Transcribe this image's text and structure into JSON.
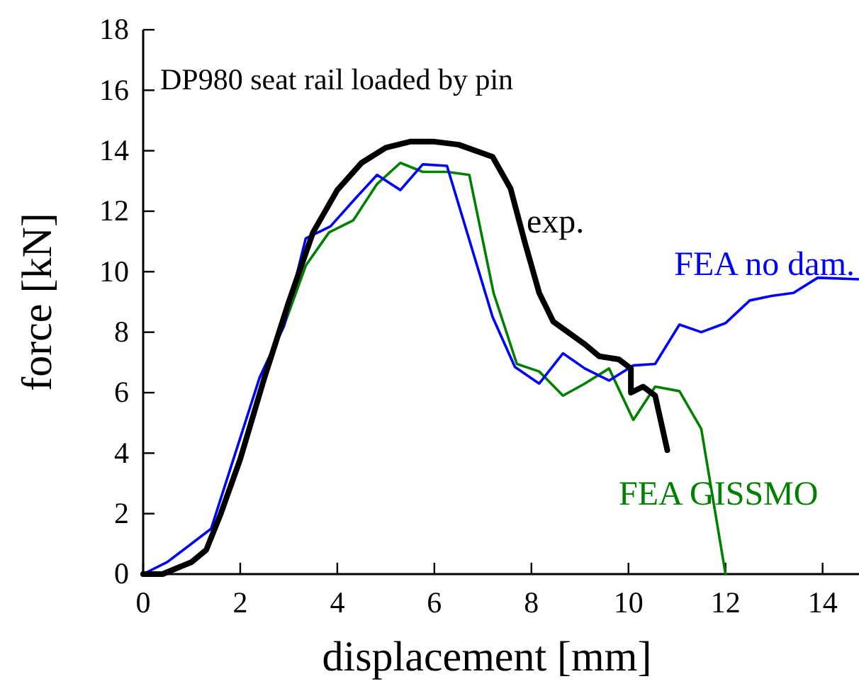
{
  "chart_data": {
    "type": "line",
    "title": "DP980 seat rail loaded by pin",
    "xlabel": "displacement [mm]",
    "ylabel": "force [kN]",
    "xlim": [
      0,
      14.75
    ],
    "xticks": [
      0,
      2,
      4,
      6,
      8,
      10,
      12,
      14
    ],
    "ylim": [
      0,
      18
    ],
    "yticks": [
      0,
      2,
      4,
      6,
      8,
      10,
      12,
      14,
      16,
      18
    ],
    "grid": false,
    "legend": false,
    "marker": "none",
    "line_style": "solid",
    "series": [
      {
        "name": "exp.",
        "color": "#000000",
        "x": [
          0,
          0.4,
          1.0,
          1.3,
          1.6,
          2.0,
          2.5,
          3.0,
          3.5,
          4.0,
          4.5,
          5.0,
          5.5,
          6.0,
          6.5,
          7.2,
          7.57,
          7.86,
          8.16,
          8.45,
          9.1,
          9.4,
          9.8,
          10.05,
          10.05,
          10.3,
          10.55,
          10.8
        ],
        "values": [
          0,
          0,
          0.4,
          0.8,
          2,
          3.8,
          6.5,
          9,
          11.3,
          12.7,
          13.6,
          14.1,
          14.3,
          14.3,
          14.2,
          13.8,
          12.75,
          11,
          9.3,
          8.35,
          7.6,
          7.2,
          7.1,
          6.8,
          6,
          6.2,
          5.9,
          4.1
        ]
      },
      {
        "name": "FEA no dam.",
        "color": "#0000ff",
        "x": [
          0,
          0.5,
          1.4,
          2.4,
          2.9,
          3.35,
          3.86,
          4.36,
          4.82,
          5.3,
          5.76,
          6.26,
          7.2,
          7.66,
          8.16,
          8.65,
          9.1,
          9.6,
          10.1,
          10.55,
          11.05,
          11.5,
          12,
          12.5,
          12.95,
          13.4,
          13.9,
          14.75
        ],
        "values": [
          0,
          0.4,
          1.5,
          6.5,
          8.2,
          11.1,
          11.5,
          12.4,
          13.2,
          12.7,
          13.55,
          13.5,
          8.5,
          6.85,
          6.3,
          7.3,
          6.8,
          6.4,
          6.9,
          6.95,
          8.25,
          8,
          8.3,
          9.05,
          9.2,
          9.3,
          9.8,
          9.75
        ]
      },
      {
        "name": "FEA GISSMO",
        "color": "#008000",
        "x": [
          2.4,
          2.9,
          3.35,
          3.83,
          4.33,
          4.82,
          5.3,
          5.76,
          6.26,
          6.72,
          7.22,
          7.7,
          8.16,
          8.65,
          9.1,
          9.6,
          10.1,
          10.55,
          11.05,
          11.5,
          12
        ],
        "values": [
          6.5,
          8.2,
          10.2,
          11.3,
          11.7,
          12.9,
          13.6,
          13.3,
          13.3,
          13.2,
          9.3,
          6.95,
          6.7,
          5.9,
          6.3,
          6.8,
          5.1,
          6.2,
          6.05,
          4.8,
          0
        ]
      }
    ]
  }
}
